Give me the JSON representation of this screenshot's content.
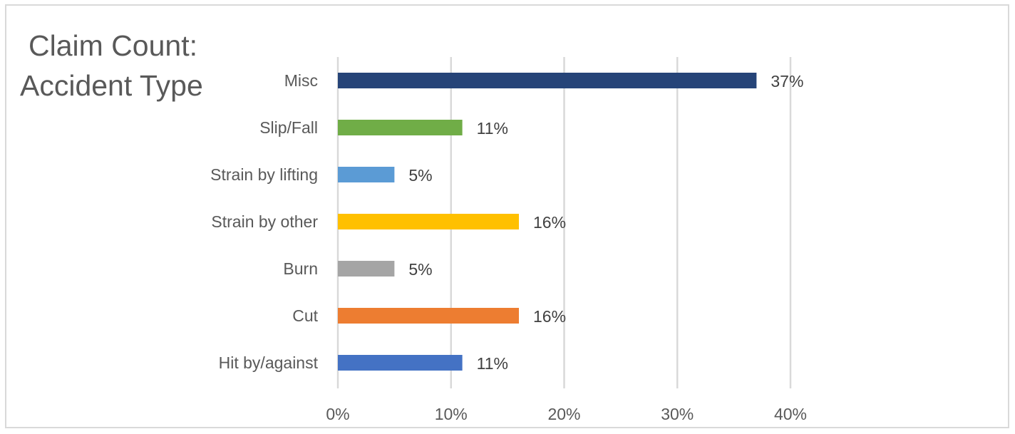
{
  "chart_data": {
    "type": "bar",
    "orientation": "horizontal",
    "title_lines": [
      "Claim Count:",
      "Accident Type"
    ],
    "categories": [
      "Misc",
      "Slip/Fall",
      "Strain by lifting",
      "Strain by other",
      "Burn",
      "Cut",
      "Hit by/against"
    ],
    "values": [
      37,
      11,
      5,
      16,
      5,
      16,
      11
    ],
    "data_labels": [
      "37%",
      "11%",
      "5%",
      "16%",
      "5%",
      "16%",
      "11%"
    ],
    "colors": [
      "#264478",
      "#70ad47",
      "#5b9bd5",
      "#ffc000",
      "#a5a5a5",
      "#ed7d31",
      "#4472c4"
    ],
    "xlim": [
      0,
      40
    ],
    "x_ticks": [
      0,
      10,
      20,
      30,
      40
    ],
    "x_tick_labels": [
      "0%",
      "10%",
      "20%",
      "30%",
      "40%"
    ],
    "grid": true,
    "legend": "none"
  }
}
